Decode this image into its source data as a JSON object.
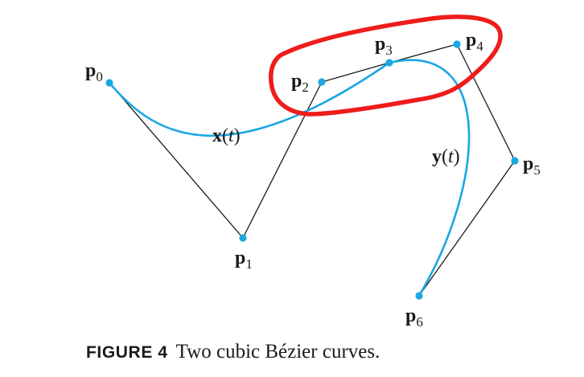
{
  "figure": {
    "caption_label": "FIGURE 4",
    "caption_text": "Two cubic Bézier curves.",
    "curve_color": "#1aa7e3",
    "highlight_color": "#ef1c1c",
    "points": [
      {
        "name": "p",
        "sub": "0"
      },
      {
        "name": "p",
        "sub": "1"
      },
      {
        "name": "p",
        "sub": "2"
      },
      {
        "name": "p",
        "sub": "3"
      },
      {
        "name": "p",
        "sub": "4"
      },
      {
        "name": "p",
        "sub": "5"
      },
      {
        "name": "p",
        "sub": "6"
      }
    ],
    "curves": [
      {
        "name": "x",
        "param": "t"
      },
      {
        "name": "y",
        "param": "t"
      }
    ]
  }
}
